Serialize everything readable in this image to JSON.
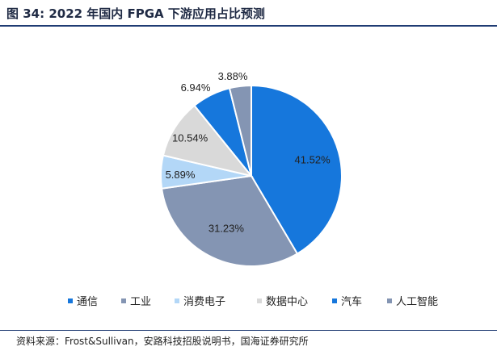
{
  "title": "图 34:  2022 年国内 FPGA 下游应用占比预测",
  "source": "资料来源：Frost&Sullivan，安路科技招股说明书，国海证券研究所",
  "chart_data": {
    "type": "pie",
    "title": "图 34:  2022 年国内 FPGA 下游应用占比预测",
    "slices": [
      {
        "label": "通信",
        "value": 41.52,
        "display": "41.52%",
        "color": "#1677dc"
      },
      {
        "label": "工业",
        "value": 31.23,
        "display": "31.23%",
        "color": "#8495b3"
      },
      {
        "label": "消费电子",
        "value": 5.89,
        "display": "5.89%",
        "color": "#b3d7f7"
      },
      {
        "label": "数据中心",
        "value": 10.54,
        "display": "10.54%",
        "color": "#d9d9d9"
      },
      {
        "label": "汽车",
        "value": 6.94,
        "display": "6.94%",
        "color": "#1677dc"
      },
      {
        "label": "人工智能",
        "value": 3.88,
        "display": "3.88%",
        "color": "#8495b3"
      }
    ],
    "legend_position": "bottom",
    "start_angle": "12 o'clock",
    "direction": "clockwise"
  }
}
